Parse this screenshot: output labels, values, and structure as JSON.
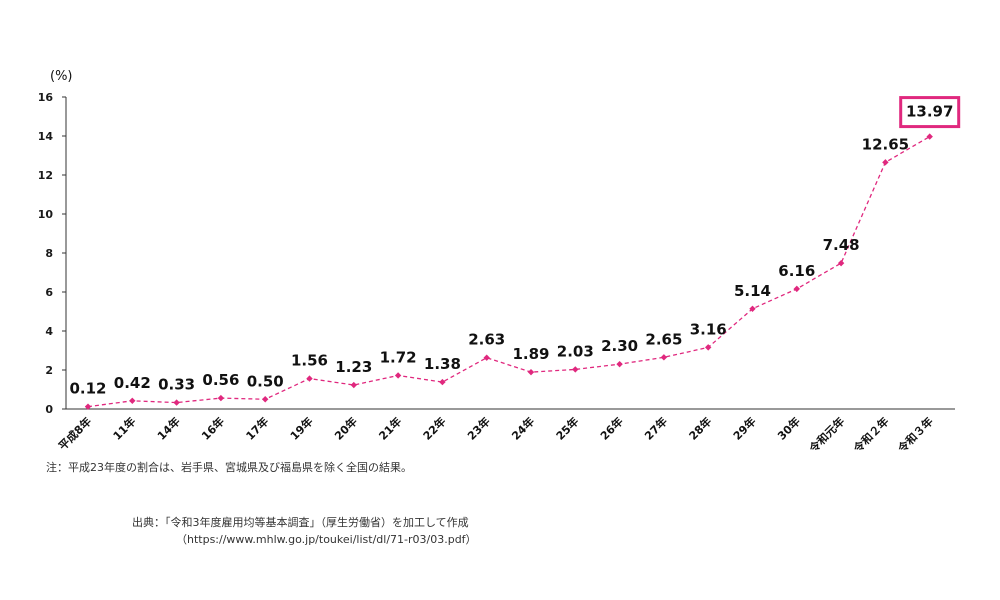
{
  "chart_data": {
    "type": "line",
    "unit_label": "(%)",
    "categories": [
      "平成8年",
      "11年",
      "14年",
      "16年",
      "17年",
      "19年",
      "20年",
      "21年",
      "22年",
      "23年",
      "24年",
      "25年",
      "26年",
      "27年",
      "28年",
      "29年",
      "30年",
      "令和元年",
      "令和２年",
      "令和３年"
    ],
    "values": [
      0.12,
      0.42,
      0.33,
      0.56,
      0.5,
      1.56,
      1.23,
      1.72,
      1.38,
      2.63,
      1.89,
      2.03,
      2.3,
      2.65,
      3.16,
      5.14,
      6.16,
      7.48,
      12.65,
      13.97
    ],
    "value_labels": [
      "0.12",
      "0.42",
      "0.33",
      "0.56",
      "0.50",
      "1.56",
      "1.23",
      "1.72",
      "1.38",
      "2.63",
      "1.89",
      "2.03",
      "2.30",
      "2.65",
      "3.16",
      "5.14",
      "6.16",
      "7.48",
      "12.65",
      "13.97"
    ],
    "ylim": [
      0,
      16
    ],
    "yticks": [
      "0",
      "2",
      "4",
      "6",
      "8",
      "10",
      "12",
      "14",
      "16"
    ],
    "grid": false,
    "highlight_index": 19,
    "colors": {
      "line": "#e0287e",
      "highlight_border": "#e0287e",
      "axis": "#333333"
    }
  },
  "note": "注：平成23年度の割合は、岩手県、宮城県及び福島県を除く全国の結果。",
  "source": {
    "line1": "出典：「令和3年度雇用均等基本調査」（厚生労働省）を加工して作成",
    "line2": "（https://www.mhlw.go.jp/toukei/list/dl/71-r03/03.pdf）"
  }
}
